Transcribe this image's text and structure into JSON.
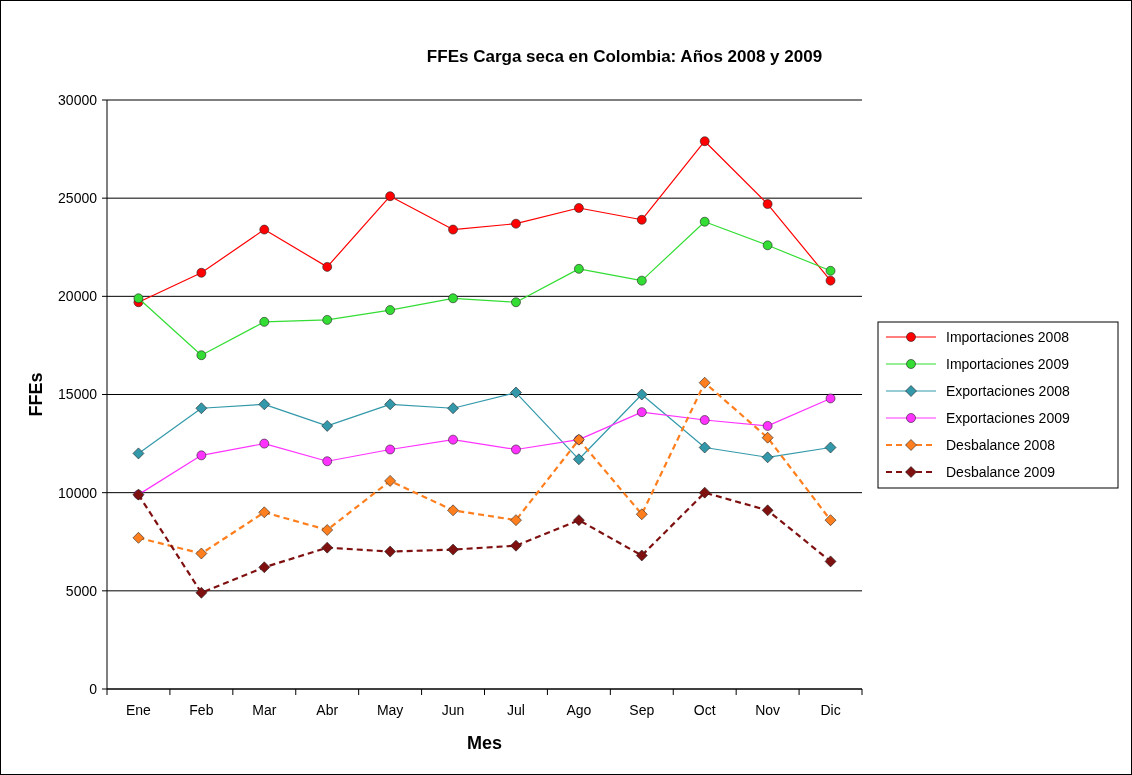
{
  "chart_data": {
    "type": "line",
    "title": "FFEs Carga seca en Colombia: Años 2008 y 2009",
    "xlabel": "Mes",
    "ylabel": "FFEs",
    "categories": [
      "Ene",
      "Feb",
      "Mar",
      "Abr",
      "May",
      "Jun",
      "Jul",
      "Ago",
      "Sep",
      "Oct",
      "Nov",
      "Dic"
    ],
    "ylim": [
      0,
      30000
    ],
    "yticks": [
      0,
      5000,
      10000,
      15000,
      20000,
      25000,
      30000
    ],
    "grid": "y",
    "legend": "right",
    "series": [
      {
        "name": "Importaciones 2008",
        "color": "#ff0000",
        "marker": "circle",
        "line_style": "solid",
        "values": [
          19700,
          21200,
          23400,
          21500,
          25100,
          23400,
          23700,
          24500,
          23900,
          27900,
          24700,
          20800
        ]
      },
      {
        "name": "Importaciones 2009",
        "color": "#33dd33",
        "marker": "circle",
        "line_style": "solid",
        "values": [
          19900,
          17000,
          18700,
          18800,
          19300,
          19900,
          19700,
          21400,
          20800,
          23800,
          22600,
          21300
        ]
      },
      {
        "name": "Exportaciones 2008",
        "color": "#3399aa",
        "marker": "diamond",
        "line_style": "solid",
        "values": [
          12000,
          14300,
          14500,
          13400,
          14500,
          14300,
          15100,
          11700,
          15000,
          12300,
          11800,
          12300
        ]
      },
      {
        "name": "Exportaciones 2009",
        "color": "#ff33ff",
        "marker": "circle",
        "line_style": "solid",
        "values": [
          9900,
          11900,
          12500,
          11600,
          12200,
          12700,
          12200,
          12700,
          14100,
          13700,
          13400,
          14800
        ]
      },
      {
        "name": "Desbalance 2008",
        "color": "#ff7f1e",
        "marker": "diamond",
        "line_style": "dashed",
        "values": [
          7700,
          6900,
          9000,
          8100,
          10600,
          9100,
          8600,
          12700,
          8900,
          15600,
          12800,
          8600
        ]
      },
      {
        "name": "Desbalance 2009",
        "color": "#7f1010",
        "marker": "diamond",
        "line_style": "dashed",
        "values": [
          9900,
          4900,
          6200,
          7200,
          7000,
          7100,
          7300,
          8600,
          6800,
          10000,
          9100,
          6500
        ]
      }
    ]
  }
}
